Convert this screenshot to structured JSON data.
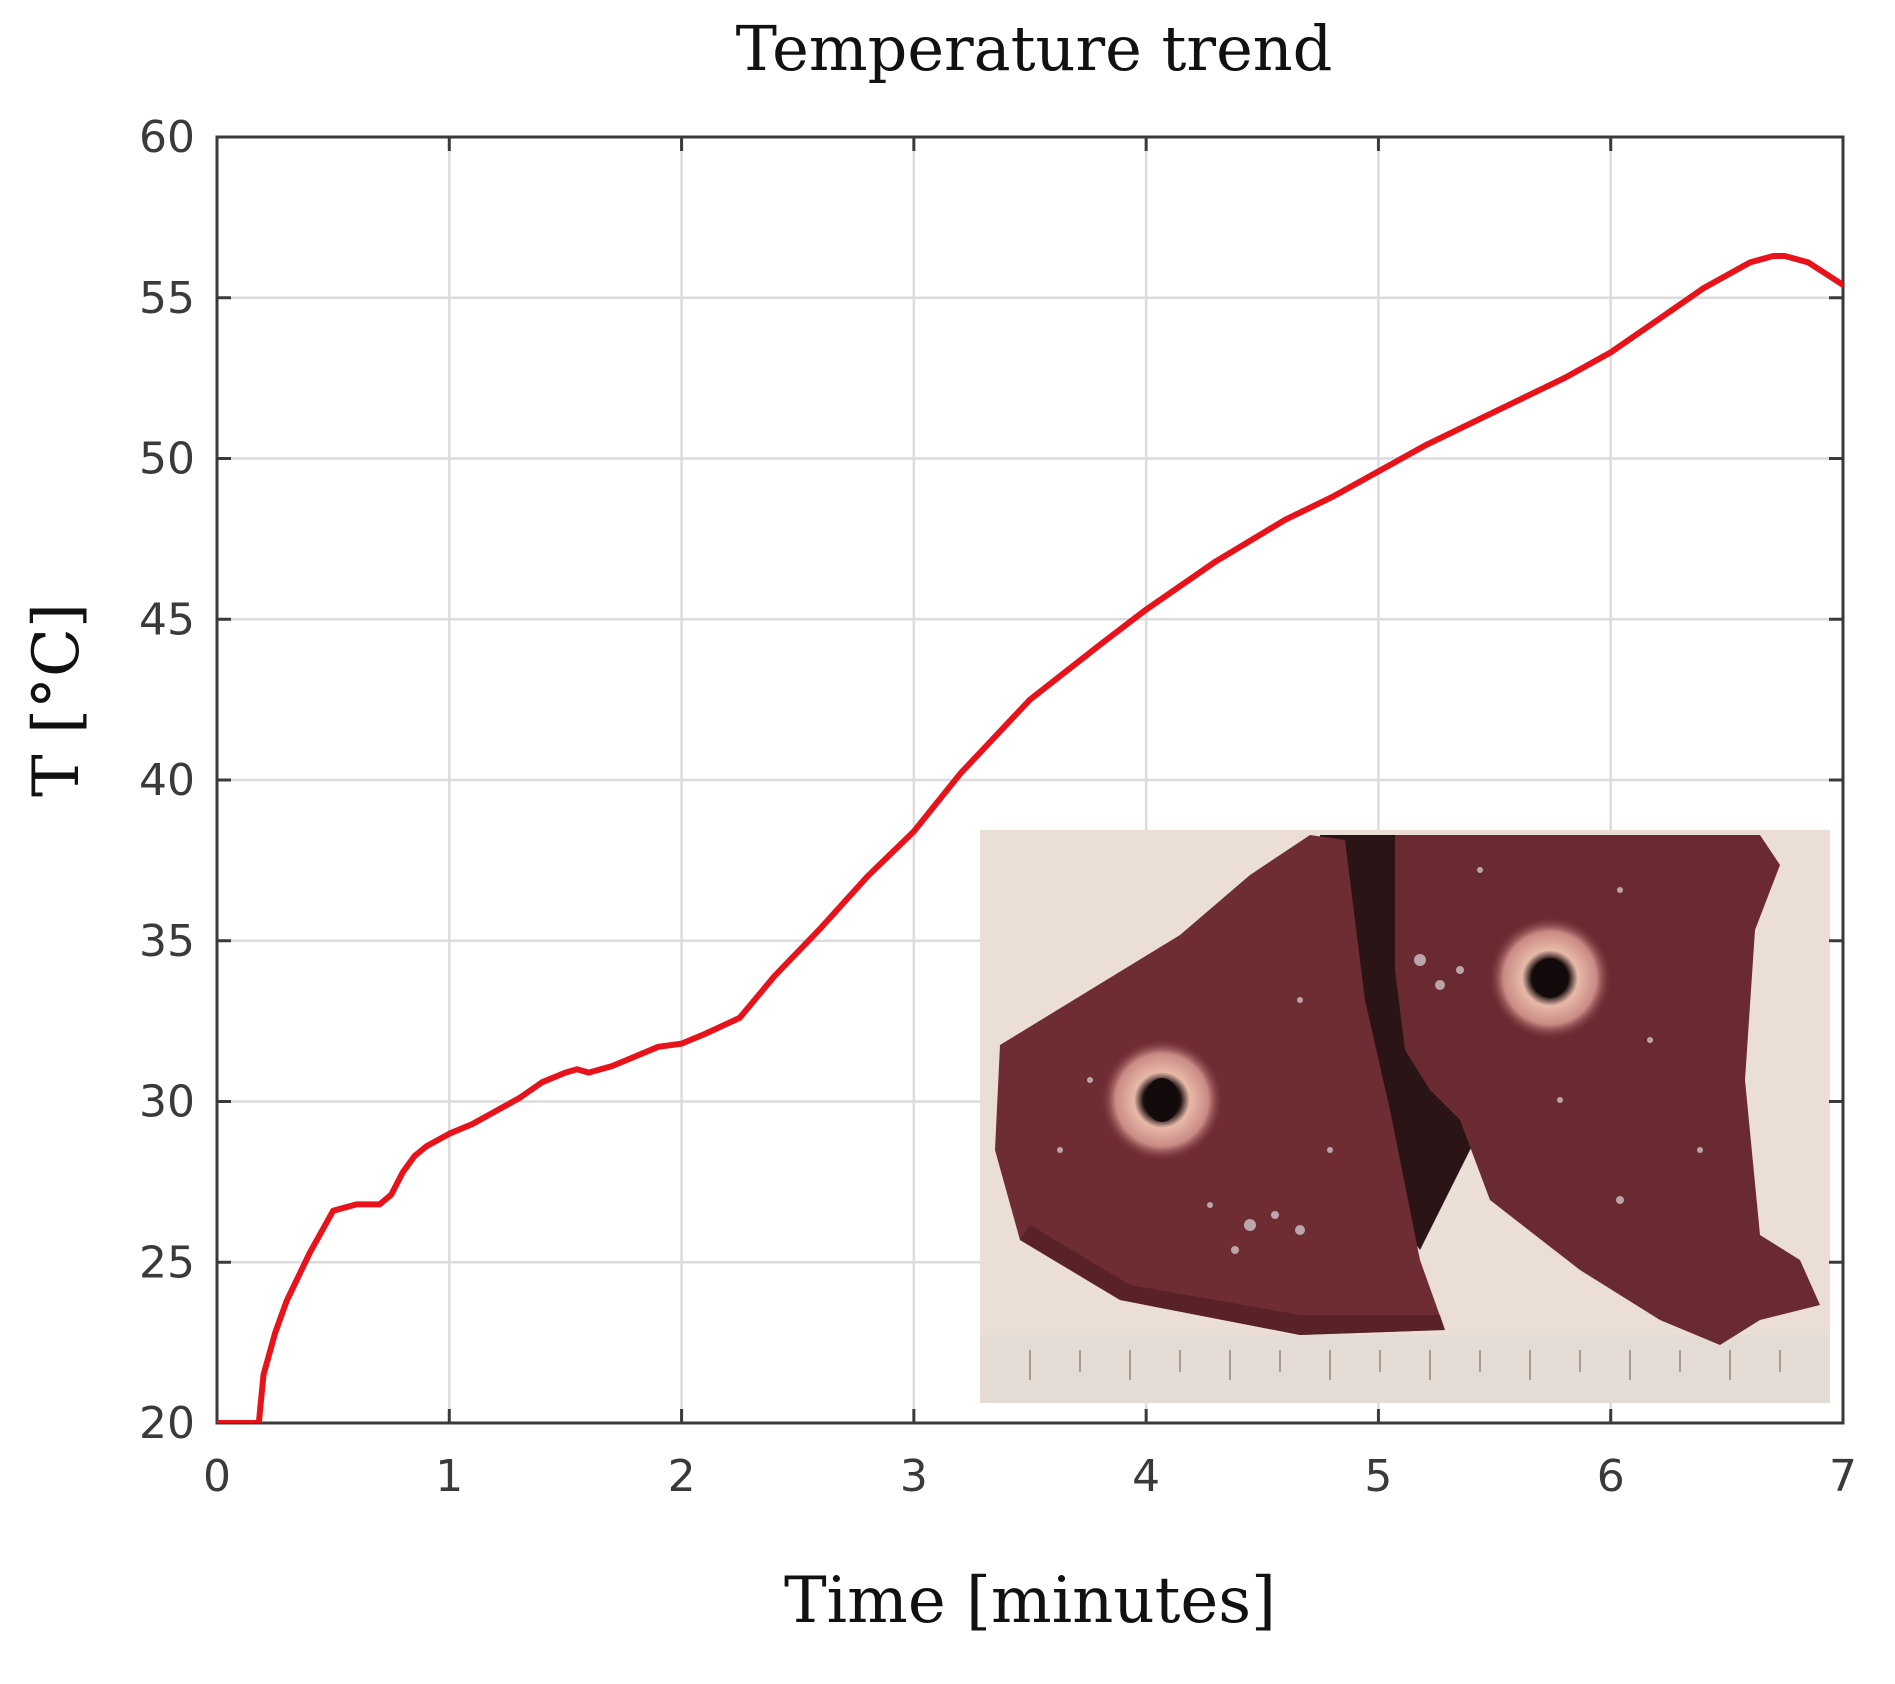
{
  "chart_data": {
    "type": "line",
    "title": "Temperature trend",
    "xlabel": "Time [minutes]",
    "ylabel": "T [°C]",
    "xlim": [
      0,
      7
    ],
    "ylim": [
      20,
      60
    ],
    "xticks": [
      "0",
      "1",
      "2",
      "3",
      "4",
      "5",
      "6",
      "7"
    ],
    "yticks": [
      "20",
      "25",
      "30",
      "35",
      "40",
      "45",
      "50",
      "55",
      "60"
    ],
    "grid": true,
    "series": [
      {
        "color": "#e8131a",
        "x": [
          0,
          0.1,
          0.18,
          0.2,
          0.25,
          0.3,
          0.4,
          0.5,
          0.6,
          0.7,
          0.75,
          0.8,
          0.85,
          0.9,
          1.0,
          1.1,
          1.2,
          1.3,
          1.4,
          1.5,
          1.55,
          1.6,
          1.7,
          1.8,
          1.9,
          2.0,
          2.1,
          2.25,
          2.4,
          2.6,
          2.8,
          3.0,
          3.2,
          3.5,
          3.8,
          4.0,
          4.3,
          4.6,
          4.8,
          5.0,
          5.2,
          5.4,
          5.6,
          5.8,
          6.0,
          6.2,
          6.4,
          6.6,
          6.7,
          6.75,
          6.85,
          7.0
        ],
        "y": [
          20,
          20,
          20,
          21.5,
          22.8,
          23.8,
          25.3,
          26.6,
          26.8,
          26.8,
          27.1,
          27.8,
          28.3,
          28.6,
          29.0,
          29.3,
          29.7,
          30.1,
          30.6,
          30.9,
          31.0,
          30.9,
          31.1,
          31.4,
          31.7,
          31.8,
          32.1,
          32.6,
          33.9,
          35.4,
          37.0,
          38.4,
          40.2,
          42.5,
          44.2,
          45.3,
          46.8,
          48.1,
          48.8,
          49.6,
          50.4,
          51.1,
          51.8,
          52.5,
          53.3,
          54.3,
          55.3,
          56.1,
          56.3,
          56.3,
          56.1,
          55.4
        ]
      }
    ]
  }
}
